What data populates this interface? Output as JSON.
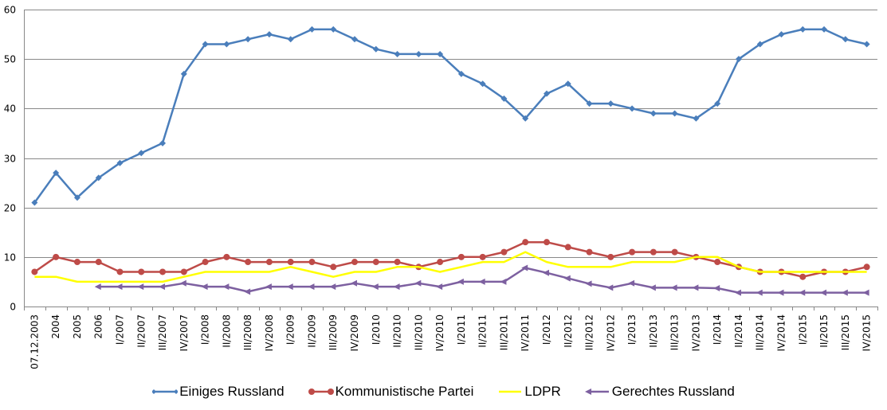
{
  "chart_data": {
    "type": "line",
    "title": "",
    "xlabel": "",
    "ylabel": "",
    "ylim": [
      0,
      60
    ],
    "yticks": [
      0,
      10,
      20,
      30,
      40,
      50,
      60
    ],
    "grid": true,
    "legend_position": "bottom",
    "categories": [
      "07.12.2003",
      "2004",
      "2005",
      "2006",
      "I/2007",
      "II/2007",
      "III/2007",
      "IV/2007",
      "I/2008",
      "II/2008",
      "III/2008",
      "IV/2008",
      "I/2009",
      "II/2009",
      "III/2009",
      "IV/2009",
      "I/2010",
      "II/2010",
      "III/2010",
      "IV/2010",
      "I/2011",
      "II/2011",
      "III/2011",
      "IV/2011",
      "I/2012",
      "II/2012",
      "III/2012",
      "IV/2012",
      "I/2013",
      "II/2013",
      "III/2013",
      "IV/2013",
      "I/2014",
      "II/2014",
      "III/2014",
      "IV/2014",
      "I/2015",
      "II/2015",
      "III/2015",
      "IV/2015"
    ],
    "series": [
      {
        "name": "Einiges Russland",
        "color": "#4a7ebb",
        "marker": "diamond",
        "values": [
          21,
          27,
          22,
          26,
          29,
          31,
          33,
          47,
          53,
          53,
          54,
          55,
          54,
          56,
          56,
          54,
          52,
          51,
          51,
          51,
          47,
          45,
          42,
          38,
          43,
          45,
          41,
          41,
          40,
          39,
          39,
          38,
          41,
          50,
          53,
          55,
          56,
          56,
          54,
          53
        ]
      },
      {
        "name": "Kommunistische Partei",
        "color": "#be4b48",
        "marker": "circle",
        "values": [
          7,
          10,
          9,
          9,
          7,
          7,
          7,
          7,
          9,
          10,
          9,
          9,
          9,
          9,
          8,
          9,
          9,
          9,
          8,
          9,
          10,
          10,
          11,
          13,
          13,
          12,
          11,
          10,
          11,
          11,
          11,
          10,
          9,
          8,
          7,
          7,
          6,
          7,
          7,
          8
        ]
      },
      {
        "name": "LDPR",
        "color": "#ffff00",
        "marker": "none",
        "values": [
          6,
          6,
          5,
          5,
          5,
          5,
          5,
          6,
          7,
          7,
          7,
          7,
          8,
          7,
          6,
          7,
          7,
          8,
          8,
          7,
          8,
          9,
          9,
          11,
          9,
          8,
          8,
          8,
          9,
          9,
          9,
          10,
          10,
          8,
          7,
          7,
          7,
          7,
          7,
          7
        ]
      },
      {
        "name": "Gerechtes Russland",
        "color": "#7d60a0",
        "marker": "triangle-left",
        "values": [
          null,
          null,
          null,
          4,
          4,
          4,
          4,
          4.7,
          4,
          4,
          3,
          4,
          4,
          4,
          4,
          4.7,
          4,
          4,
          4.7,
          4,
          5,
          5,
          5,
          7.8,
          6.8,
          5.7,
          4.6,
          3.8,
          4.7,
          3.8,
          3.8,
          3.8,
          3.7,
          2.8,
          2.8,
          2.8,
          2.8,
          2.8,
          2.8,
          2.8
        ]
      }
    ]
  }
}
